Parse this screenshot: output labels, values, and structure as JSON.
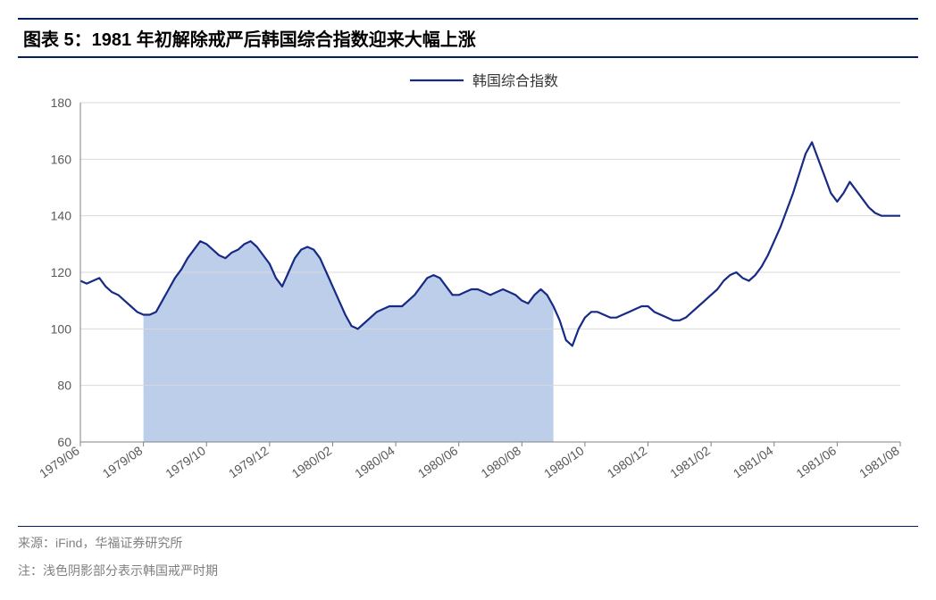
{
  "title": "图表 5：1981 年初解除戒严后韩国综合指数迎来大幅上涨",
  "source_label": "来源：",
  "source_value": "iFind，华福证券研究所",
  "note_label": "注：",
  "note_value": "浅色阴影部分表示韩国戒严时期",
  "chart": {
    "type": "line",
    "series_name": "韩国综合指数",
    "line_color": "#172b85",
    "line_width": 2.2,
    "background_color": "#ffffff",
    "shade_color": "#b6c9e8",
    "shade_opacity": 0.9,
    "axis_color": "#808080",
    "grid_color": "#d9d9d9",
    "tick_font_size": 14,
    "ylim": [
      60,
      180
    ],
    "ytick_step": 20,
    "x_labels": [
      "1979/06",
      "1979/08",
      "1979/10",
      "1979/12",
      "1980/02",
      "1980/04",
      "1980/06",
      "1980/08",
      "1980/10",
      "1980/12",
      "1981/02",
      "1981/04",
      "1981/06",
      "1981/08"
    ],
    "shade_start_index": 10,
    "shade_end_index": 75,
    "data": [
      117,
      116,
      117,
      118,
      115,
      113,
      112,
      110,
      108,
      106,
      105,
      105,
      106,
      110,
      114,
      118,
      121,
      125,
      128,
      131,
      130,
      128,
      126,
      125,
      127,
      128,
      130,
      131,
      129,
      126,
      123,
      118,
      115,
      120,
      125,
      128,
      129,
      128,
      125,
      120,
      115,
      110,
      105,
      101,
      100,
      102,
      104,
      106,
      107,
      108,
      108,
      108,
      110,
      112,
      115,
      118,
      119,
      118,
      115,
      112,
      112,
      113,
      114,
      114,
      113,
      112,
      113,
      114,
      113,
      112,
      110,
      109,
      112,
      114,
      112,
      108,
      103,
      96,
      94,
      100,
      104,
      106,
      106,
      105,
      104,
      104,
      105,
      106,
      107,
      108,
      108,
      106,
      105,
      104,
      103,
      103,
      104,
      106,
      108,
      110,
      112,
      114,
      117,
      119,
      120,
      118,
      117,
      119,
      122,
      126,
      131,
      136,
      142,
      148,
      155,
      162,
      166,
      160,
      154,
      148,
      145,
      148,
      152,
      149,
      146,
      143,
      141,
      140,
      140,
      140,
      140
    ]
  }
}
